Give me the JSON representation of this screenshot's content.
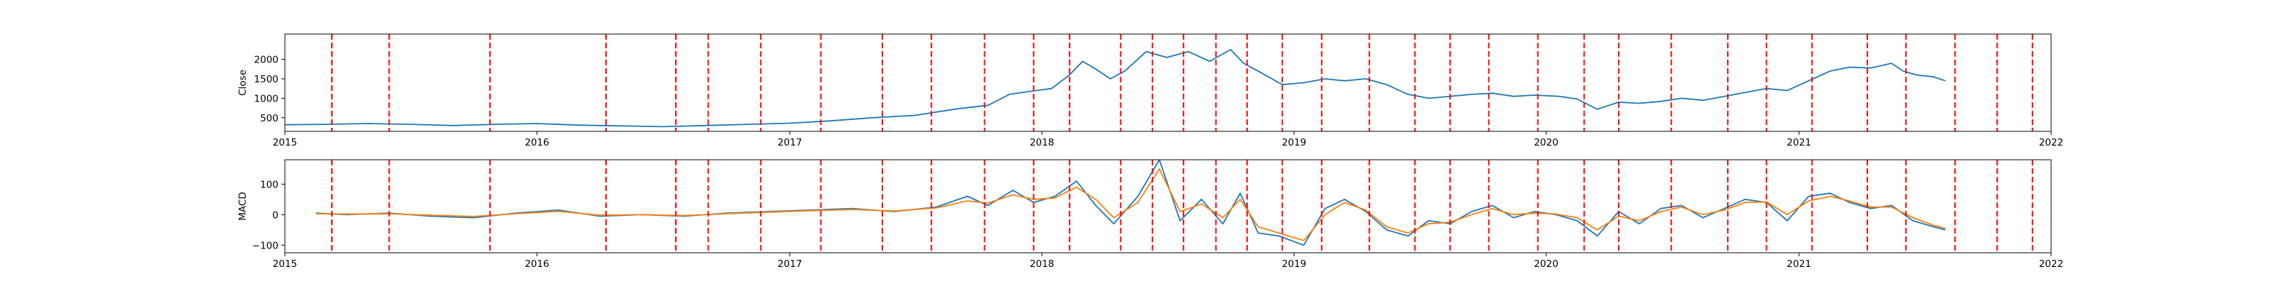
{
  "chart_data": [
    {
      "type": "line",
      "panel": "top",
      "title": "",
      "xlabel": "",
      "ylabel": "Close",
      "xlim": [
        "2015-01-01",
        "2022-01-01"
      ],
      "ylim": [
        150,
        2650
      ],
      "x_ticks": [
        {
          "date": "2015-01-01",
          "label": "2015"
        },
        {
          "date": "2016-01-01",
          "label": "2016"
        },
        {
          "date": "2017-01-01",
          "label": "2017"
        },
        {
          "date": "2018-01-01",
          "label": "2018"
        },
        {
          "date": "2019-01-01",
          "label": "2019"
        },
        {
          "date": "2020-01-01",
          "label": "2020"
        },
        {
          "date": "2021-01-01",
          "label": "2021"
        },
        {
          "date": "2022-01-01",
          "label": "2022"
        }
      ],
      "y_ticks": [
        {
          "value": 500,
          "label": "500"
        },
        {
          "value": 1000,
          "label": "1000"
        },
        {
          "value": 1500,
          "label": "1500"
        },
        {
          "value": 2000,
          "label": "2000"
        }
      ],
      "grid": false,
      "series": [
        {
          "color": "#1f77b4",
          "points": [
            [
              "2015-01-01",
              320
            ],
            [
              "2015-03-01",
              330
            ],
            [
              "2015-05-01",
              350
            ],
            [
              "2015-07-01",
              330
            ],
            [
              "2015-09-01",
              300
            ],
            [
              "2015-11-01",
              330
            ],
            [
              "2016-01-01",
              350
            ],
            [
              "2016-03-01",
              310
            ],
            [
              "2016-05-01",
              290
            ],
            [
              "2016-07-01",
              270
            ],
            [
              "2016-09-01",
              300
            ],
            [
              "2016-11-01",
              330
            ],
            [
              "2017-01-01",
              360
            ],
            [
              "2017-03-01",
              420
            ],
            [
              "2017-05-01",
              500
            ],
            [
              "2017-07-01",
              560
            ],
            [
              "2017-09-01",
              730
            ],
            [
              "2017-10-15",
              820
            ],
            [
              "2017-11-15",
              1100
            ],
            [
              "2017-12-15",
              1180
            ],
            [
              "2018-01-15",
              1250
            ],
            [
              "2018-02-10",
              1600
            ],
            [
              "2018-03-01",
              1950
            ],
            [
              "2018-03-20",
              1750
            ],
            [
              "2018-04-10",
              1500
            ],
            [
              "2018-05-01",
              1700
            ],
            [
              "2018-06-01",
              2200
            ],
            [
              "2018-07-01",
              2050
            ],
            [
              "2018-08-01",
              2200
            ],
            [
              "2018-09-01",
              1950
            ],
            [
              "2018-10-01",
              2250
            ],
            [
              "2018-10-20",
              1900
            ],
            [
              "2018-11-15",
              1650
            ],
            [
              "2018-12-15",
              1350
            ],
            [
              "2019-01-15",
              1400
            ],
            [
              "2019-02-15",
              1500
            ],
            [
              "2019-03-15",
              1450
            ],
            [
              "2019-04-15",
              1500
            ],
            [
              "2019-05-15",
              1350
            ],
            [
              "2019-06-15",
              1100
            ],
            [
              "2019-07-15",
              1000
            ],
            [
              "2019-08-15",
              1050
            ],
            [
              "2019-09-15",
              1100
            ],
            [
              "2019-10-15",
              1130
            ],
            [
              "2019-11-15",
              1050
            ],
            [
              "2019-12-15",
              1080
            ],
            [
              "2020-01-20",
              1050
            ],
            [
              "2020-02-15",
              980
            ],
            [
              "2020-03-15",
              720
            ],
            [
              "2020-04-15",
              900
            ],
            [
              "2020-05-15",
              870
            ],
            [
              "2020-06-15",
              920
            ],
            [
              "2020-07-15",
              1000
            ],
            [
              "2020-08-15",
              950
            ],
            [
              "2020-09-15",
              1050
            ],
            [
              "2020-10-15",
              1150
            ],
            [
              "2020-11-15",
              1250
            ],
            [
              "2020-12-15",
              1200
            ],
            [
              "2021-01-15",
              1450
            ],
            [
              "2021-02-15",
              1700
            ],
            [
              "2021-03-15",
              1800
            ],
            [
              "2021-04-15",
              1780
            ],
            [
              "2021-05-15",
              1900
            ],
            [
              "2021-06-01",
              1700
            ],
            [
              "2021-06-20",
              1600
            ],
            [
              "2021-07-15",
              1550
            ],
            [
              "2021-08-01",
              1450
            ]
          ]
        }
      ],
      "annotations": {
        "type": "vertical_lines",
        "style": "dashed",
        "color": "#ff0000",
        "dates": [
          "2015-03-10",
          "2015-06-01",
          "2015-10-25",
          "2016-04-10",
          "2016-07-20",
          "2016-09-05",
          "2016-11-20",
          "2017-02-15",
          "2017-05-15",
          "2017-07-25",
          "2017-10-10",
          "2017-12-20",
          "2018-02-10",
          "2018-04-25",
          "2018-06-10",
          "2018-07-25",
          "2018-09-10",
          "2018-10-25",
          "2018-12-15",
          "2019-02-10",
          "2019-04-20",
          "2019-06-25",
          "2019-08-15",
          "2019-10-10",
          "2019-12-20",
          "2020-02-25",
          "2020-04-15",
          "2020-06-30",
          "2020-09-20",
          "2020-11-15",
          "2021-01-20",
          "2021-04-10",
          "2021-06-05",
          "2021-08-15",
          "2021-10-15",
          "2021-12-05"
        ]
      }
    },
    {
      "type": "line",
      "panel": "bottom",
      "title": "",
      "xlabel": "",
      "ylabel": "MACD",
      "xlim": [
        "2015-01-01",
        "2022-01-01"
      ],
      "ylim": [
        -125,
        180
      ],
      "x_ticks": [
        {
          "date": "2015-01-01",
          "label": "2015"
        },
        {
          "date": "2016-01-01",
          "label": "2016"
        },
        {
          "date": "2017-01-01",
          "label": "2017"
        },
        {
          "date": "2018-01-01",
          "label": "2018"
        },
        {
          "date": "2019-01-01",
          "label": "2019"
        },
        {
          "date": "2020-01-01",
          "label": "2020"
        },
        {
          "date": "2021-01-01",
          "label": "2021"
        },
        {
          "date": "2022-01-01",
          "label": "2022"
        }
      ],
      "y_ticks": [
        {
          "value": -100,
          "label": "−100"
        },
        {
          "value": 0,
          "label": "0"
        },
        {
          "value": 100,
          "label": "100"
        }
      ],
      "grid": false,
      "series": [
        {
          "color": "#1f77b4",
          "points": [
            [
              "2015-02-15",
              5
            ],
            [
              "2015-04-01",
              0
            ],
            [
              "2015-06-01",
              5
            ],
            [
              "2015-08-01",
              -5
            ],
            [
              "2015-10-01",
              -10
            ],
            [
              "2015-12-01",
              5
            ],
            [
              "2016-02-01",
              15
            ],
            [
              "2016-04-01",
              -5
            ],
            [
              "2016-06-01",
              0
            ],
            [
              "2016-08-01",
              -5
            ],
            [
              "2016-10-01",
              5
            ],
            [
              "2016-12-01",
              10
            ],
            [
              "2017-02-01",
              15
            ],
            [
              "2017-04-01",
              20
            ],
            [
              "2017-06-01",
              10
            ],
            [
              "2017-08-01",
              25
            ],
            [
              "2017-09-15",
              60
            ],
            [
              "2017-10-15",
              30
            ],
            [
              "2017-11-20",
              80
            ],
            [
              "2017-12-20",
              40
            ],
            [
              "2018-01-20",
              60
            ],
            [
              "2018-02-20",
              110
            ],
            [
              "2018-03-20",
              30
            ],
            [
              "2018-04-15",
              -30
            ],
            [
              "2018-05-20",
              60
            ],
            [
              "2018-06-20",
              180
            ],
            [
              "2018-07-20",
              -20
            ],
            [
              "2018-08-20",
              50
            ],
            [
              "2018-09-20",
              -30
            ],
            [
              "2018-10-15",
              70
            ],
            [
              "2018-11-10",
              -60
            ],
            [
              "2018-12-10",
              -70
            ],
            [
              "2019-01-15",
              -100
            ],
            [
              "2019-02-15",
              20
            ],
            [
              "2019-03-15",
              50
            ],
            [
              "2019-04-15",
              10
            ],
            [
              "2019-05-15",
              -50
            ],
            [
              "2019-06-15",
              -70
            ],
            [
              "2019-07-15",
              -20
            ],
            [
              "2019-08-15",
              -30
            ],
            [
              "2019-09-15",
              10
            ],
            [
              "2019-10-15",
              30
            ],
            [
              "2019-11-15",
              -10
            ],
            [
              "2019-12-15",
              10
            ],
            [
              "2020-01-15",
              0
            ],
            [
              "2020-02-15",
              -20
            ],
            [
              "2020-03-15",
              -70
            ],
            [
              "2020-04-15",
              10
            ],
            [
              "2020-05-15",
              -30
            ],
            [
              "2020-06-15",
              20
            ],
            [
              "2020-07-15",
              30
            ],
            [
              "2020-08-15",
              -10
            ],
            [
              "2020-09-15",
              20
            ],
            [
              "2020-10-15",
              50
            ],
            [
              "2020-11-15",
              40
            ],
            [
              "2020-12-15",
              -20
            ],
            [
              "2021-01-15",
              60
            ],
            [
              "2021-02-15",
              70
            ],
            [
              "2021-03-15",
              40
            ],
            [
              "2021-04-15",
              20
            ],
            [
              "2021-05-15",
              30
            ],
            [
              "2021-06-15",
              -20
            ],
            [
              "2021-07-15",
              -40
            ],
            [
              "2021-08-01",
              -50
            ]
          ]
        },
        {
          "color": "#ff7f0e",
          "points": [
            [
              "2015-02-15",
              3
            ],
            [
              "2015-04-01",
              2
            ],
            [
              "2015-06-01",
              3
            ],
            [
              "2015-08-01",
              -2
            ],
            [
              "2015-10-01",
              -6
            ],
            [
              "2015-12-01",
              3
            ],
            [
              "2016-02-01",
              11
            ],
            [
              "2016-04-01",
              -2
            ],
            [
              "2016-06-01",
              0
            ],
            [
              "2016-08-01",
              -3
            ],
            [
              "2016-10-01",
              3
            ],
            [
              "2016-12-01",
              8
            ],
            [
              "2017-02-01",
              13
            ],
            [
              "2017-04-01",
              17
            ],
            [
              "2017-06-01",
              12
            ],
            [
              "2017-08-01",
              22
            ],
            [
              "2017-09-15",
              45
            ],
            [
              "2017-10-15",
              38
            ],
            [
              "2017-11-20",
              65
            ],
            [
              "2017-12-20",
              50
            ],
            [
              "2018-01-20",
              55
            ],
            [
              "2018-02-20",
              90
            ],
            [
              "2018-03-20",
              50
            ],
            [
              "2018-04-15",
              -10
            ],
            [
              "2018-05-20",
              40
            ],
            [
              "2018-06-20",
              150
            ],
            [
              "2018-07-20",
              10
            ],
            [
              "2018-08-20",
              35
            ],
            [
              "2018-09-20",
              -10
            ],
            [
              "2018-10-15",
              50
            ],
            [
              "2018-11-10",
              -40
            ],
            [
              "2018-12-10",
              -60
            ],
            [
              "2019-01-15",
              -85
            ],
            [
              "2019-02-15",
              0
            ],
            [
              "2019-03-15",
              40
            ],
            [
              "2019-04-15",
              15
            ],
            [
              "2019-05-15",
              -40
            ],
            [
              "2019-06-15",
              -60
            ],
            [
              "2019-07-15",
              -30
            ],
            [
              "2019-08-15",
              -25
            ],
            [
              "2019-09-15",
              0
            ],
            [
              "2019-10-15",
              20
            ],
            [
              "2019-11-15",
              0
            ],
            [
              "2019-12-15",
              5
            ],
            [
              "2020-01-15",
              2
            ],
            [
              "2020-02-15",
              -10
            ],
            [
              "2020-03-15",
              -50
            ],
            [
              "2020-04-15",
              -5
            ],
            [
              "2020-05-15",
              -20
            ],
            [
              "2020-06-15",
              10
            ],
            [
              "2020-07-15",
              25
            ],
            [
              "2020-08-15",
              0
            ],
            [
              "2020-09-15",
              15
            ],
            [
              "2020-10-15",
              40
            ],
            [
              "2020-11-15",
              42
            ],
            [
              "2020-12-15",
              0
            ],
            [
              "2021-01-15",
              45
            ],
            [
              "2021-02-15",
              60
            ],
            [
              "2021-03-15",
              45
            ],
            [
              "2021-04-15",
              25
            ],
            [
              "2021-05-15",
              25
            ],
            [
              "2021-06-15",
              -10
            ],
            [
              "2021-07-15",
              -35
            ],
            [
              "2021-08-01",
              -45
            ]
          ]
        }
      ],
      "annotations": {
        "type": "vertical_lines",
        "style": "dashed",
        "color": "#ff0000",
        "dates": [
          "2015-03-10",
          "2015-06-01",
          "2015-10-25",
          "2016-04-10",
          "2016-07-20",
          "2016-09-05",
          "2016-11-20",
          "2017-02-15",
          "2017-05-15",
          "2017-07-25",
          "2017-10-10",
          "2017-12-20",
          "2018-02-10",
          "2018-04-25",
          "2018-06-10",
          "2018-07-25",
          "2018-09-10",
          "2018-10-25",
          "2018-12-15",
          "2019-02-10",
          "2019-04-20",
          "2019-06-25",
          "2019-08-15",
          "2019-10-10",
          "2019-12-20",
          "2020-02-25",
          "2020-04-15",
          "2020-06-30",
          "2020-09-20",
          "2020-11-15",
          "2021-01-20",
          "2021-04-10",
          "2021-06-05",
          "2021-08-15",
          "2021-10-15",
          "2021-12-05"
        ]
      }
    }
  ]
}
